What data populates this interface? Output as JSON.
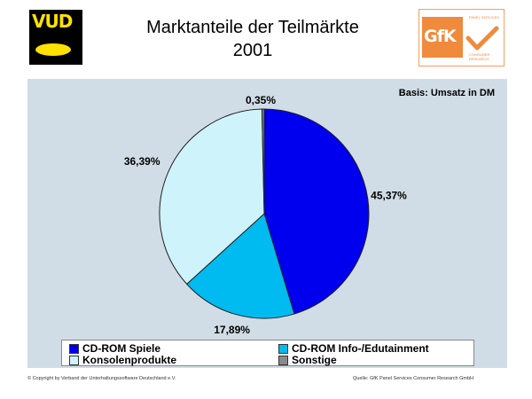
{
  "header": {
    "title_line1": "Marktanteile der Teilmärkte",
    "title_line2": "2001",
    "left_logo_text": "VUD",
    "right_logo_text": "GfK",
    "right_logo_small_top": "PANEL SERVICES",
    "right_logo_small_bottom": "CONSUMER RESEARCH"
  },
  "basis": "Basis: Umsatz in DM",
  "chart_data": {
    "type": "pie",
    "categories": [
      "CD-ROM Spiele",
      "CD-ROM Info-/Edutainment",
      "Konsolenprodukte",
      "Sonstige"
    ],
    "values": [
      45.37,
      17.89,
      36.39,
      0.35
    ],
    "value_labels": [
      "45,37%",
      "17,89%",
      "36,39%",
      "0,35%"
    ],
    "colors": [
      "#0000ee",
      "#00bbf0",
      "#cef3fb",
      "#8a8a8a"
    ],
    "start_angle_deg": 0,
    "direction": "clockwise",
    "legend_position": "bottom",
    "title": "Marktanteile der Teilmärkte"
  },
  "footer": {
    "copyright": "© Copyright by Verband der Unterhaltungssoftware Deutschland e.V.",
    "source": "Quelle: GfK Panel Services Consumer Research GmbH"
  }
}
